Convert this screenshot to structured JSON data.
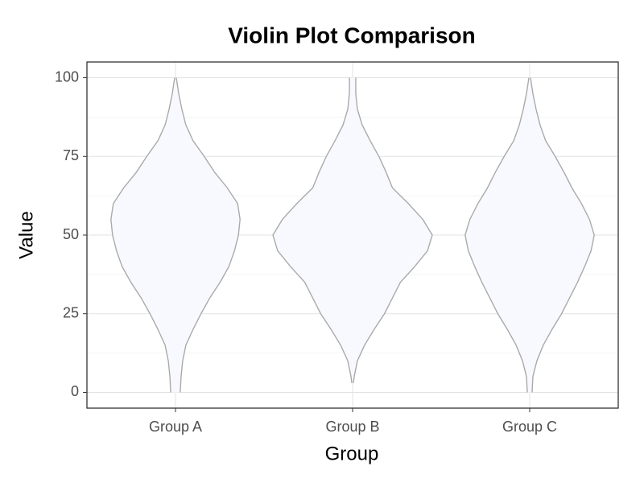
{
  "chart_data": {
    "type": "violin",
    "title": "Violin Plot Comparison",
    "x_label": "Group",
    "y_label": "Value",
    "categories": [
      "Group A",
      "Group B",
      "Group C"
    ],
    "series": [
      {
        "name": "Group A",
        "color": "#aaaaaa",
        "y": [
          0,
          5,
          10,
          15,
          20,
          25,
          30,
          35,
          40,
          45,
          50,
          55,
          60,
          65,
          70,
          75,
          80,
          85,
          90,
          95,
          100
        ],
        "widths": [
          0.06,
          0.07,
          0.09,
          0.13,
          0.22,
          0.32,
          0.43,
          0.56,
          0.67,
          0.74,
          0.79,
          0.81,
          0.78,
          0.65,
          0.49,
          0.36,
          0.22,
          0.13,
          0.08,
          0.04,
          0.01
        ]
      },
      {
        "name": "Group B",
        "color": "#aaaaaa",
        "y": [
          3,
          5,
          10,
          15,
          20,
          25,
          30,
          35,
          40,
          45,
          50,
          55,
          60,
          65,
          70,
          75,
          80,
          85,
          90,
          95,
          100
        ],
        "widths": [
          0.01,
          0.02,
          0.06,
          0.15,
          0.27,
          0.4,
          0.5,
          0.6,
          0.78,
          0.94,
          1.0,
          0.88,
          0.7,
          0.5,
          0.42,
          0.33,
          0.22,
          0.12,
          0.06,
          0.04,
          0.04
        ]
      },
      {
        "name": "Group C",
        "color": "#aaaaaa",
        "y": [
          0,
          5,
          10,
          15,
          20,
          25,
          30,
          35,
          40,
          45,
          50,
          55,
          60,
          65,
          70,
          75,
          80,
          85,
          90,
          95,
          100
        ],
        "widths": [
          0.03,
          0.04,
          0.09,
          0.17,
          0.28,
          0.4,
          0.5,
          0.6,
          0.69,
          0.77,
          0.81,
          0.75,
          0.65,
          0.53,
          0.43,
          0.32,
          0.2,
          0.13,
          0.08,
          0.04,
          0.01
        ]
      }
    ],
    "ylim": [
      -5,
      105
    ],
    "yticks": [
      0,
      25,
      50,
      75,
      100
    ],
    "grid": true
  }
}
